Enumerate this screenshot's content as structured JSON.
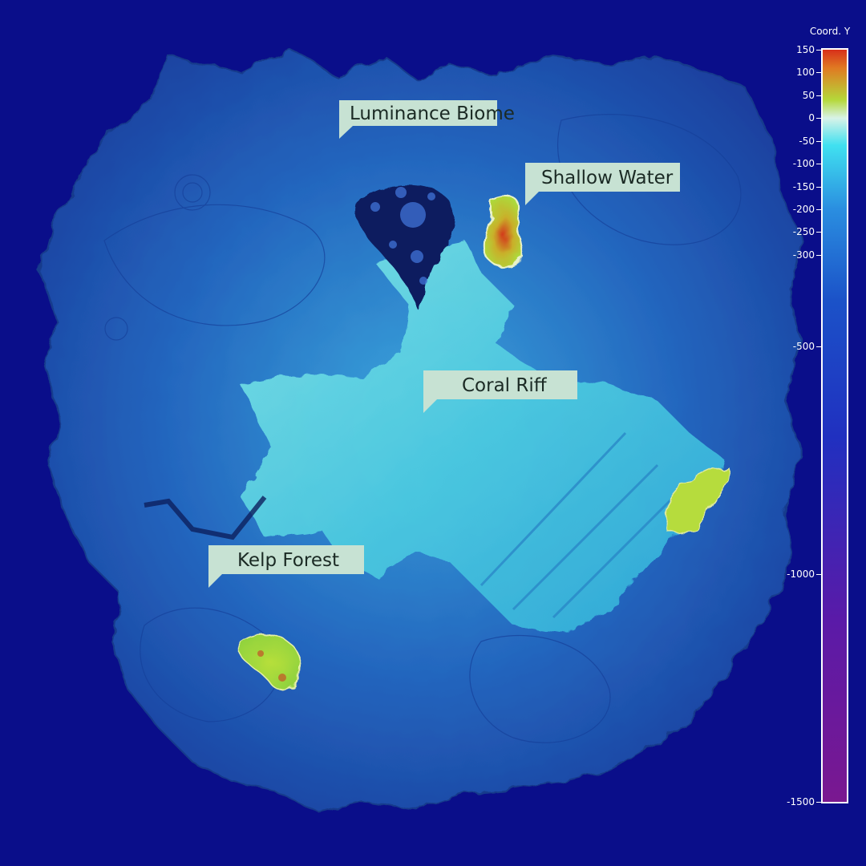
{
  "map": {
    "regions": [
      {
        "name": "Luminance Biome"
      },
      {
        "name": "Shallow Water"
      },
      {
        "name": "Coral Riff"
      },
      {
        "name": "Kelp Forest"
      }
    ],
    "colors": {
      "ocean": "#0a0e8a",
      "deep_terrain": "#1c47a8",
      "mid_terrain": "#2f8fd0",
      "shallow_terrain": "#5fd6e4",
      "peak_low": "#b8e23a",
      "peak_high": "#d8301a",
      "callout_bg": "#c7e2d3"
    }
  },
  "legend": {
    "title": "Coord. Y",
    "ticks": [
      "150",
      "100",
      "50",
      "0",
      "-50",
      "-100",
      "-150",
      "-200",
      "-250",
      "-300",
      "-500",
      "-1000",
      "-1500"
    ],
    "range": [
      -1500,
      150
    ]
  }
}
